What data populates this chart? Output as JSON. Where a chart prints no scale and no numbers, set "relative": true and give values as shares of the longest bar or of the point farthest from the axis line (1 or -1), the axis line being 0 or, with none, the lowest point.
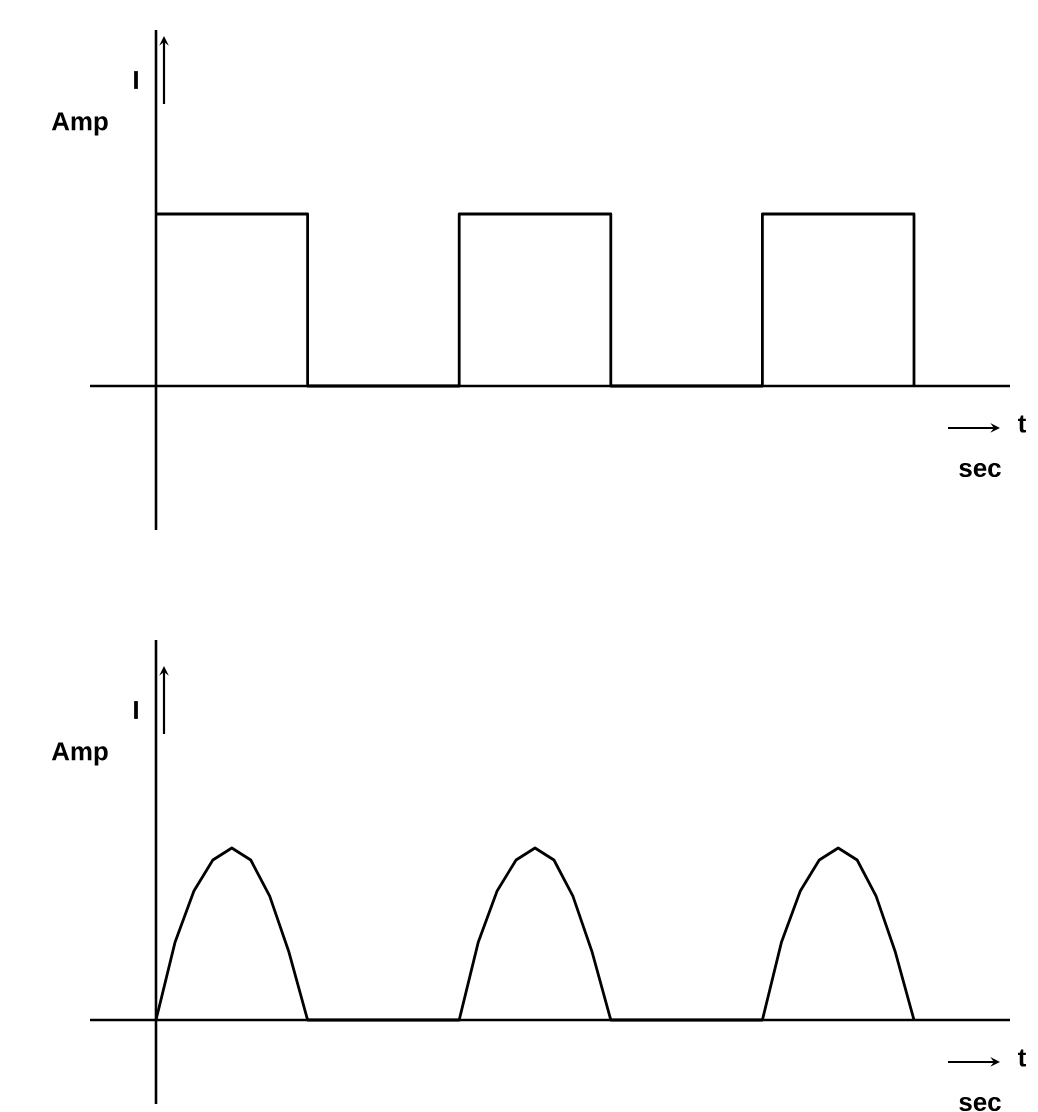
{
  "chart_data": [
    {
      "type": "step",
      "relative": true,
      "ylabel": "I",
      "xlabel": "t",
      "annotations": [
        "Amp",
        "sec"
      ],
      "color": "#000000",
      "categories": [
        null,
        null,
        null,
        null,
        null,
        null
      ],
      "values": [
        1,
        0,
        1,
        0,
        1,
        0
      ]
    },
    {
      "type": "line",
      "relative": true,
      "ylabel": "I",
      "xlabel": "t",
      "annotations": [
        "Amp",
        "sec"
      ],
      "color": "#000000",
      "categories": [
        null,
        null,
        null,
        null,
        null,
        null,
        null,
        null,
        null,
        null,
        null,
        null,
        null,
        null,
        null,
        null,
        null,
        null,
        null,
        null,
        null,
        null,
        null,
        null,
        null,
        null,
        null,
        null,
        null,
        null,
        null,
        null,
        null,
        null,
        null,
        null,
        null,
        null,
        null,
        null,
        null
      ],
      "values": [
        0,
        0.45,
        0.75,
        0.93,
        1,
        0.93,
        0.72,
        0.4,
        0,
        0,
        0,
        0,
        0,
        0,
        0,
        0,
        0,
        0.45,
        0.75,
        0.93,
        1,
        0.93,
        0.72,
        0.4,
        0,
        0,
        0,
        0,
        0,
        0,
        0,
        0,
        0,
        0.45,
        0.75,
        0.93,
        1,
        0.93,
        0.72,
        0.4,
        0
      ]
    }
  ]
}
